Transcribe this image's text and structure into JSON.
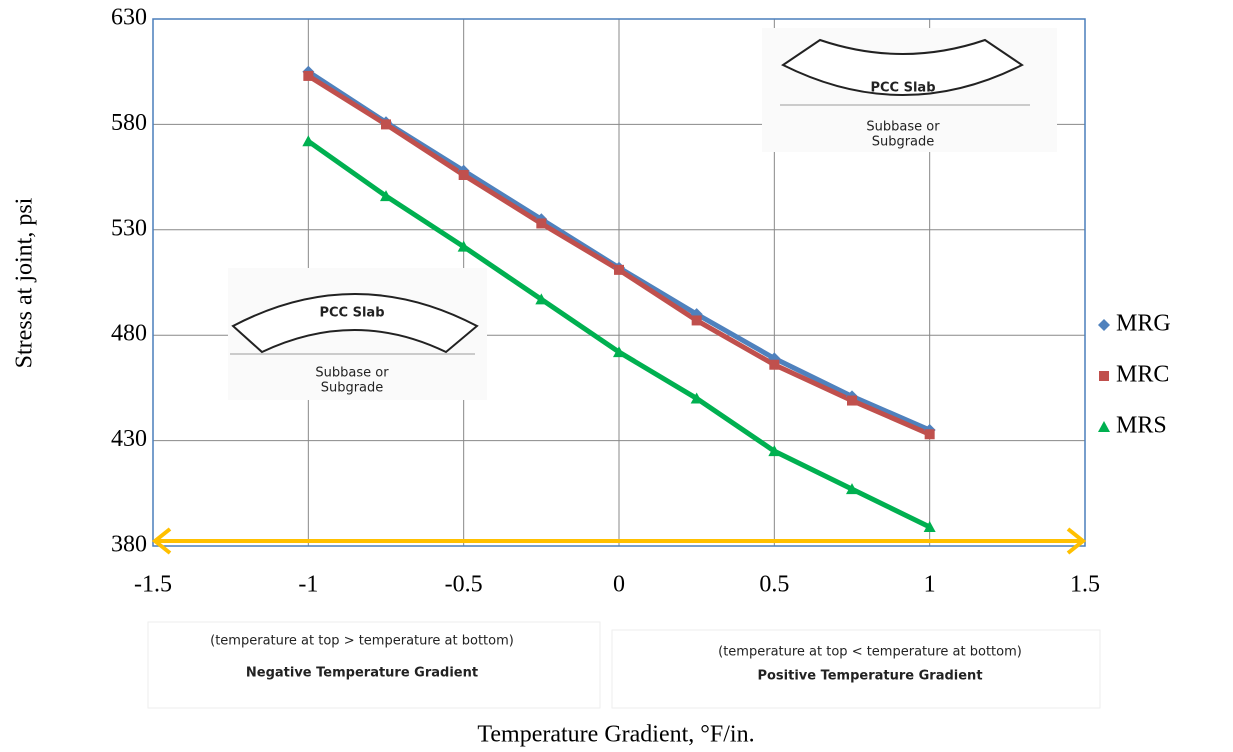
{
  "chart_data": {
    "type": "scatter",
    "x_label": "Temperature Gradient, °F/in.",
    "y_label": "Stress at joint, psi",
    "x": [
      -1,
      -0.75,
      -0.5,
      -0.25,
      0,
      0.25,
      0.5,
      0.75,
      1
    ],
    "series": [
      {
        "name": "MRG",
        "color": "#4f81bd",
        "marker": "diamond",
        "values": [
          605,
          581,
          558,
          535,
          512,
          490,
          469,
          451,
          435
        ]
      },
      {
        "name": "MRC",
        "color": "#c0504d",
        "marker": "square",
        "values": [
          603,
          580,
          556,
          533,
          511,
          487,
          466,
          449,
          433
        ]
      },
      {
        "name": "MRS",
        "color": "#00b050",
        "marker": "triangle",
        "values": [
          572,
          546,
          522,
          497,
          472,
          450,
          425,
          407,
          389
        ]
      }
    ],
    "xlim": [
      -1.5,
      1.5
    ],
    "xticks": [
      -1.5,
      -1,
      -0.5,
      0,
      0.5,
      1,
      1.5
    ],
    "ylim": [
      380,
      630
    ],
    "yticks": [
      380,
      430,
      480,
      530,
      580,
      630
    ],
    "grid": true,
    "legend": "right",
    "insets": [
      {
        "slab": "PCC Slab",
        "base_lines": [
          "Subbase or",
          "Subgrade"
        ]
      },
      {
        "slab": "PCC Slab",
        "base_lines": [
          "Subbase or",
          "Subgrade"
        ]
      }
    ],
    "gradient_notes": [
      {
        "condition": "(temperature at top > temperature at bottom)",
        "label": "Negative Temperature Gradient"
      },
      {
        "condition": "(temperature at top < temperature at bottom)",
        "label": "Positive Temperature Gradient"
      }
    ]
  }
}
